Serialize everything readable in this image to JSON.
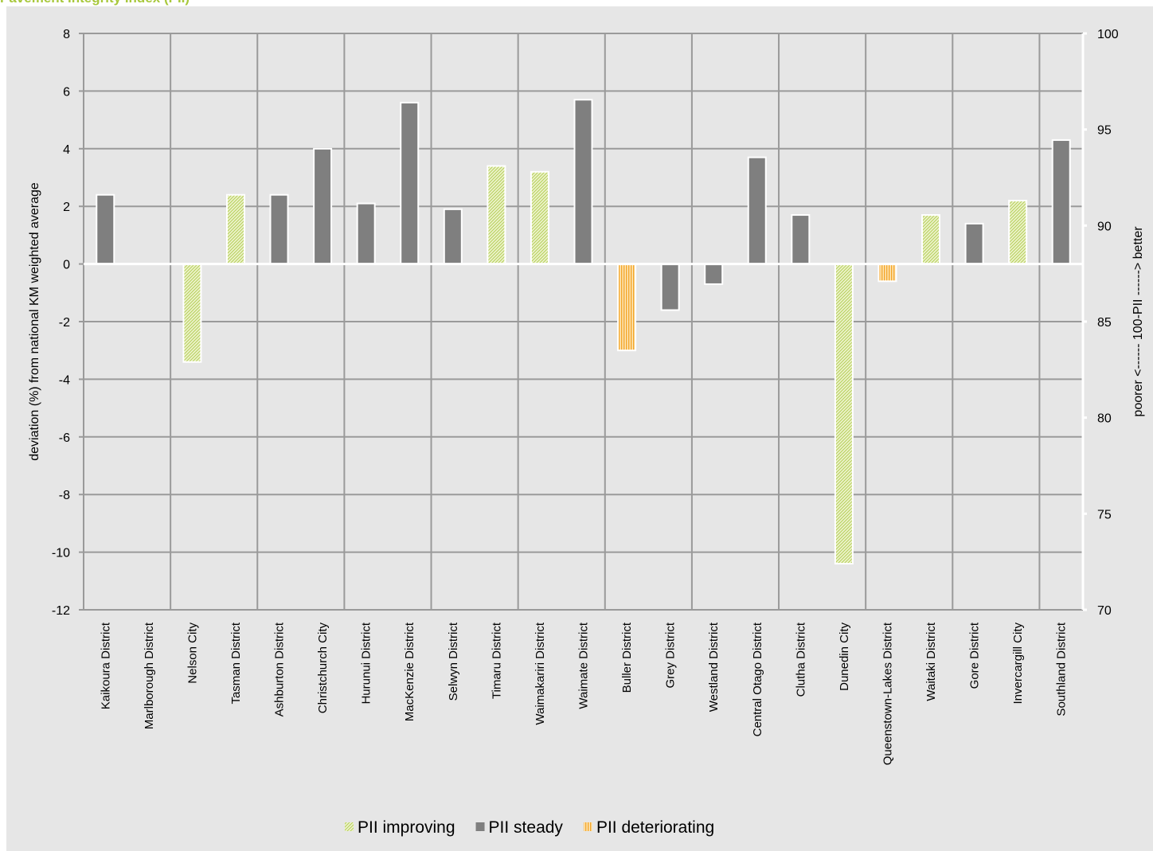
{
  "chart_data": {
    "type": "bar",
    "title": "Pavement Integrity Index (PII)",
    "ylabel": "deviation (%) from national KM weighted average",
    "y2label": "poorer <------ 100-PII ------> better",
    "ylim": [
      -12,
      8
    ],
    "y_ticks": [
      "8",
      "6",
      "4",
      "2",
      "0",
      "-2",
      "-4",
      "-6",
      "-8",
      "-10",
      "-12"
    ],
    "y2lim": [
      70,
      100
    ],
    "y2_ticks": [
      "100",
      "95",
      "90",
      "85",
      "80",
      "75",
      "70"
    ],
    "grid": true,
    "legend_position": "bottom",
    "categories": [
      "Kaikoura District",
      "Marlborough District",
      "Nelson City",
      "Tasman District",
      "Ashburton District",
      "Christchurch City",
      "Hurunui District",
      "MacKenzie District",
      "Selwyn District",
      "Timaru District",
      "Waimakariri District",
      "Waimate District",
      "Buller District",
      "Grey District",
      "Westland District",
      "Central Otago District",
      "Clutha District",
      "Dunedin City",
      "Queenstown-Lakes District",
      "Waitaki District",
      "Gore District",
      "Invercargill City",
      "Southland District"
    ],
    "series": [
      {
        "name": "PII improving",
        "color": "#c8dc78",
        "pattern": "diagonal",
        "values": [
          null,
          null,
          -3.4,
          2.4,
          null,
          null,
          null,
          null,
          null,
          3.4,
          3.2,
          null,
          null,
          null,
          null,
          null,
          null,
          -10.4,
          null,
          1.7,
          null,
          2.2,
          null
        ]
      },
      {
        "name": "PII steady",
        "color": "#808080",
        "pattern": "solid",
        "values": [
          2.4,
          null,
          null,
          null,
          2.4,
          4.0,
          2.1,
          5.6,
          1.9,
          null,
          null,
          5.7,
          null,
          -1.6,
          -0.7,
          3.7,
          1.7,
          null,
          null,
          null,
          1.4,
          null,
          4.3
        ]
      },
      {
        "name": "PII deteriorating",
        "color": "#f5b040",
        "pattern": "vertical",
        "values": [
          null,
          null,
          null,
          null,
          null,
          null,
          null,
          null,
          null,
          null,
          null,
          null,
          -3.0,
          null,
          null,
          null,
          null,
          null,
          -0.6,
          null,
          null,
          null,
          null
        ]
      }
    ]
  }
}
